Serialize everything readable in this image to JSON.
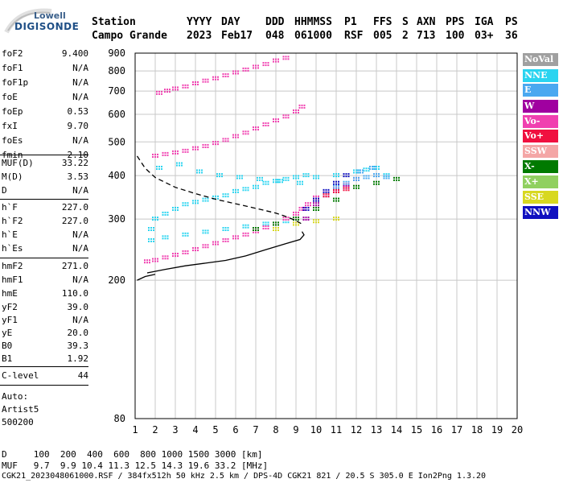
{
  "logo": {
    "top_text": "Lowell",
    "main_text": "DIGISONDE"
  },
  "header": {
    "labels": [
      "Station",
      "YYYY",
      "DAY",
      "DDD",
      "HHMMSS",
      "P1",
      "FFS",
      "S",
      "AXN",
      "PPS",
      "IGA",
      "PS"
    ],
    "values": [
      "Campo Grande",
      "2023",
      "Feb17",
      "048",
      "061000",
      "RSF",
      "005",
      "2",
      "713",
      "100",
      "03+",
      "36"
    ]
  },
  "params": [
    {
      "label": "foF2",
      "value": "9.400"
    },
    {
      "label": "foF1",
      "value": "N/A"
    },
    {
      "label": "foF1p",
      "value": "N/A"
    },
    {
      "label": "foE",
      "value": "N/A"
    },
    {
      "label": "foEp",
      "value": "0.53"
    },
    {
      "label": "fxI",
      "value": "9.70"
    },
    {
      "label": "foEs",
      "value": "N/A"
    },
    {
      "label": "fmin",
      "value": "2.10"
    },
    {
      "label": "MUF(D)",
      "value": "33.22"
    },
    {
      "label": "M(D)",
      "value": "3.53"
    },
    {
      "label": "D",
      "value": "N/A"
    },
    {
      "label": "h`F",
      "value": "227.0"
    },
    {
      "label": "h`F2",
      "value": "227.0"
    },
    {
      "label": "h`E",
      "value": "N/A"
    },
    {
      "label": "h`Es",
      "value": "N/A"
    },
    {
      "label": "hmF2",
      "value": "271.0"
    },
    {
      "label": "hmF1",
      "value": "N/A"
    },
    {
      "label": "hmE",
      "value": "110.0"
    },
    {
      "label": "yF2",
      "value": "39.0"
    },
    {
      "label": "yF1",
      "value": "N/A"
    },
    {
      "label": "yE",
      "value": "20.0"
    },
    {
      "label": "B0",
      "value": "39.3"
    },
    {
      "label": "B1",
      "value": "1.92"
    },
    {
      "label": "C-level",
      "value": "44"
    }
  ],
  "autoscaling": {
    "line1": "Auto:",
    "line2": "Artist5",
    "line3": "500200"
  },
  "legend": [
    {
      "label": "NoVal",
      "color": "#a0a0a0"
    },
    {
      "label": "NNE",
      "color": "#2ad4f0"
    },
    {
      "label": "E",
      "color": "#4aa8f0"
    },
    {
      "label": "W",
      "color": "#a000a0"
    },
    {
      "label": "Vo-",
      "color": "#f040b0"
    },
    {
      "label": "Vo+",
      "color": "#f01040"
    },
    {
      "label": "SSW",
      "color": "#f4a6a6"
    },
    {
      "label": "X-",
      "color": "#007a00"
    },
    {
      "label": "X+",
      "color": "#90d060"
    },
    {
      "label": "SSE",
      "color": "#d8d820"
    },
    {
      "label": "NNW",
      "color": "#1010c0"
    }
  ],
  "footer": {
    "line1": "D     100  200  400  600  800 1000 1500 3000 [km]",
    "line2": "MUF   9.7  9.9 10.4 11.3 12.5 14.3 19.6 33.2 [MHz]",
    "line3": "CGK21_2023048061000.RSF / 384fx512h 50 kHz 2.5 km / DPS-4D CGK21 821 / 20.5 S 305.0 E Ion2Png 1.3.20"
  },
  "chart_data": {
    "type": "scatter",
    "xlim": [
      1,
      20
    ],
    "ylim": [
      80,
      900
    ],
    "x_ticks": [
      1,
      2,
      3,
      4,
      5,
      6,
      7,
      8,
      9,
      10,
      11,
      12,
      13,
      14,
      15,
      16,
      17,
      18,
      19,
      20
    ],
    "y_ticks": [
      80,
      200,
      300,
      400,
      500,
      600,
      700,
      800,
      900
    ],
    "grid": true,
    "y_scale": "log",
    "series": [
      {
        "name": "NNE",
        "color": "#2ad4f0",
        "x": [
          1.8,
          2.0,
          2.5,
          3.0,
          3.5,
          4.0,
          4.5,
          5.0,
          5.5,
          6.0,
          6.5,
          7.0,
          7.5,
          8.0,
          8.5,
          9.0,
          9.5,
          1.8,
          2.5,
          3.5,
          4.5,
          5.5,
          6.5,
          7.5,
          8.5,
          2.2,
          3.2,
          4.2,
          5.2,
          6.2,
          7.2,
          8.2,
          9.2,
          10.0,
          11.0,
          12.0,
          12.5,
          13.0,
          13.5
        ],
        "y": [
          280,
          300,
          310,
          320,
          330,
          335,
          340,
          345,
          350,
          360,
          365,
          370,
          380,
          385,
          390,
          395,
          400,
          260,
          265,
          270,
          275,
          280,
          285,
          290,
          295,
          420,
          430,
          410,
          400,
          395,
          390,
          385,
          380,
          395,
          400,
          410,
          415,
          420,
          400
        ]
      },
      {
        "name": "O-trace",
        "color": "#f040b0",
        "x": [
          1.6,
          2.0,
          2.5,
          3.0,
          3.5,
          4.0,
          4.5,
          5.0,
          5.5,
          6.0,
          6.5,
          7.0,
          7.5,
          8.0,
          8.5,
          9.0,
          9.3,
          9.6,
          10.0,
          10.5,
          11.0,
          11.5,
          12.0
        ],
        "y": [
          226,
          228,
          232,
          236,
          240,
          245,
          250,
          255,
          260,
          265,
          270,
          276,
          283,
          290,
          300,
          310,
          320,
          330,
          345,
          355,
          365,
          375,
          390
        ]
      },
      {
        "name": "E",
        "color": "#4aa8f0",
        "x": [
          10.5,
          11.0,
          11.5,
          12.0,
          12.5,
          13.0,
          13.5,
          12.2,
          12.8
        ],
        "y": [
          350,
          370,
          380,
          390,
          395,
          400,
          395,
          410,
          420
        ]
      },
      {
        "name": "W",
        "color": "#a000a0",
        "x": [
          9.5,
          10.0,
          10.5,
          11.0,
          11.5
        ],
        "y": [
          300,
          330,
          350,
          360,
          370
        ]
      },
      {
        "name": "Vo+",
        "color": "#f01040",
        "x": [
          9.0,
          9.5,
          10.0,
          10.5,
          11.0,
          11.5
        ],
        "y": [
          300,
          320,
          340,
          350,
          360,
          365
        ]
      },
      {
        "name": "X-",
        "color": "#007a00",
        "x": [
          7.0,
          8.0,
          9.0,
          10.0,
          11.0,
          12.0,
          13.0,
          14.0
        ],
        "y": [
          280,
          290,
          300,
          320,
          340,
          370,
          380,
          390
        ]
      },
      {
        "name": "SSE",
        "color": "#d8d820",
        "x": [
          8.0,
          9.0,
          10.0,
          11.0
        ],
        "y": [
          280,
          290,
          295,
          300
        ]
      },
      {
        "name": "NNW",
        "color": "#1010c0",
        "x": [
          9.5,
          10.0,
          10.5,
          11.0,
          11.5
        ],
        "y": [
          320,
          340,
          360,
          380,
          400
        ]
      },
      {
        "name": "2F",
        "color": "#f040b0",
        "x": [
          2.0,
          2.5,
          3.0,
          3.5,
          4.0,
          4.5,
          5.0,
          5.5,
          6.0,
          6.5,
          7.0,
          7.5,
          8.0,
          8.5,
          9.0,
          9.3
        ],
        "y": [
          455,
          460,
          465,
          470,
          478,
          485,
          495,
          505,
          518,
          530,
          545,
          560,
          575,
          590,
          610,
          630
        ]
      },
      {
        "name": "3F",
        "color": "#f040b0",
        "x": [
          2.2,
          2.6,
          3.0,
          3.5,
          4.0,
          4.5,
          5.0,
          5.5,
          6.0,
          6.5,
          7.0,
          7.5,
          8.0,
          8.5
        ],
        "y": [
          690,
          700,
          710,
          720,
          735,
          748,
          760,
          775,
          790,
          805,
          820,
          835,
          855,
          870
        ]
      }
    ],
    "lines": [
      {
        "name": "profile-solid",
        "color": "#000000",
        "x": [
          1.6,
          2.5,
          3.5,
          4.5,
          5.5,
          6.5,
          7.5,
          8.5,
          9.2,
          9.4,
          9.3
        ],
        "y": [
          210,
          215,
          220,
          224,
          228,
          235,
          245,
          255,
          262,
          270,
          276
        ]
      },
      {
        "name": "profile-dashed",
        "color": "#000000",
        "dashed": true,
        "x": [
          1.1,
          1.5,
          2.0,
          3.0,
          4.0,
          5.0,
          6.0,
          7.0,
          8.0,
          8.5,
          9.0,
          9.3
        ],
        "y": [
          455,
          420,
          395,
          370,
          355,
          342,
          332,
          322,
          312,
          305,
          297,
          290
        ]
      },
      {
        "name": "bottom-trace",
        "color": "#000000",
        "x": [
          1.1,
          1.5,
          2.0
        ],
        "y": [
          200,
          205,
          208
        ]
      }
    ]
  }
}
